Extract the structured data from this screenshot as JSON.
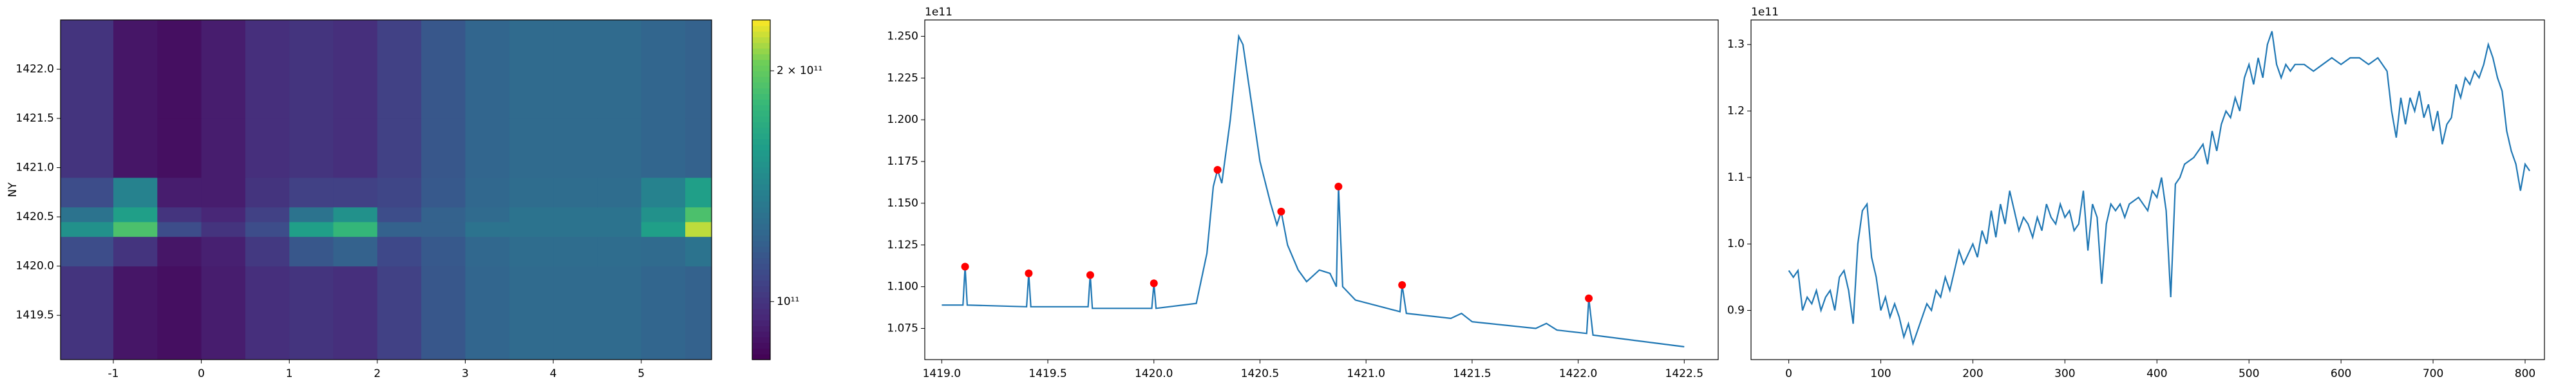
{
  "chart_data": [
    {
      "type": "heatmap",
      "ylabel": "NY",
      "x_edges": [
        -1.6,
        -1.0,
        -0.5,
        0,
        0.5,
        1.0,
        1.5,
        2.0,
        2.5,
        3.0,
        3.5,
        4.0,
        4.5,
        5.0,
        5.5,
        5.8
      ],
      "y_edges": [
        1419.05,
        1420.0,
        1420.3,
        1420.45,
        1420.6,
        1420.9,
        1421.5,
        1422.5
      ],
      "z": [
        [
          100000000000.0,
          90000000000.0,
          88000000000.0,
          92000000000.0,
          98000000000.0,
          100000000000.0,
          98000000000.0,
          105000000000.0,
          115000000000.0,
          122000000000.0,
          125000000000.0,
          125000000000.0,
          125000000000.0,
          122000000000.0,
          120000000000.0
        ],
        [
          110000000000.0,
          100000000000.0,
          90000000000.0,
          93000000000.0,
          102000000000.0,
          115000000000.0,
          120000000000.0,
          108000000000.0,
          116000000000.0,
          123000000000.0,
          126000000000.0,
          126000000000.0,
          126000000000.0,
          125000000000.0,
          130000000000.0
        ],
        [
          150000000000.0,
          190000000000.0,
          110000000000.0,
          100000000000.0,
          110000000000.0,
          160000000000.0,
          180000000000.0,
          120000000000.0,
          120000000000.0,
          130000000000.0,
          130000000000.0,
          130000000000.0,
          130000000000.0,
          160000000000.0,
          220000000000.0
        ],
        [
          130000000000.0,
          160000000000.0,
          100000000000.0,
          95000000000.0,
          105000000000.0,
          130000000000.0,
          150000000000.0,
          110000000000.0,
          120000000000.0,
          125000000000.0,
          130000000000.0,
          130000000000.0,
          130000000000.0,
          150000000000.0,
          190000000000.0
        ],
        [
          110000000000.0,
          140000000000.0,
          92000000000.0,
          92000000000.0,
          100000000000.0,
          105000000000.0,
          105000000000.0,
          107000000000.0,
          116000000000.0,
          123000000000.0,
          126000000000.0,
          126000000000.0,
          126000000000.0,
          140000000000.0,
          160000000000.0
        ],
        [
          100000000000.0,
          90000000000.0,
          88000000000.0,
          92000000000.0,
          98000000000.0,
          100000000000.0,
          98000000000.0,
          105000000000.0,
          115000000000.0,
          122000000000.0,
          125000000000.0,
          125000000000.0,
          125000000000.0,
          122000000000.0,
          120000000000.0
        ],
        [
          100000000000.0,
          90000000000.0,
          88000000000.0,
          92000000000.0,
          98000000000.0,
          100000000000.0,
          98000000000.0,
          105000000000.0,
          115000000000.0,
          122000000000.0,
          125000000000.0,
          125000000000.0,
          125000000000.0,
          122000000000.0,
          120000000000.0
        ]
      ],
      "xlim": [
        -1.6,
        5.8
      ],
      "ylim": [
        1419.05,
        1422.5
      ],
      "xticks": [
        -1,
        0,
        1,
        2,
        3,
        4,
        5
      ],
      "yticks": [
        1419.5,
        {
          "value": 1420,
          "label": "1420.0"
        },
        1420.5,
        {
          "value": 1421,
          "label": "1421.0"
        },
        1421.5,
        {
          "value": 1422,
          "label": "1422.0"
        }
      ],
      "colormap": "viridis",
      "colorbar_log": true,
      "colorbar_lim": [
        84000000000.0,
        233000000000.0
      ],
      "colorbar_ticks": [
        {
          "value": 100000000000.0,
          "label": "10¹¹"
        },
        {
          "value": 200000000000.0,
          "label": "2 × 10¹¹"
        }
      ]
    },
    {
      "type": "line",
      "offset_label": "1e11",
      "color": "#1f77b4",
      "x": [
        1419.0,
        1419.1,
        1419.11,
        1419.12,
        1419.4,
        1419.41,
        1419.42,
        1419.69,
        1419.7,
        1419.71,
        1419.99,
        1420.0,
        1420.01,
        1420.2,
        1420.25,
        1420.28,
        1420.3,
        1420.32,
        1420.36,
        1420.4,
        1420.42,
        1420.46,
        1420.5,
        1420.55,
        1420.58,
        1420.6,
        1420.63,
        1420.68,
        1420.72,
        1420.78,
        1420.83,
        1420.86,
        1420.87,
        1420.89,
        1420.95,
        1421.1,
        1421.16,
        1421.17,
        1421.19,
        1421.4,
        1421.45,
        1421.5,
        1421.8,
        1421.85,
        1421.9,
        1422.04,
        1422.05,
        1422.07,
        1422.5
      ],
      "values": [
        1.089,
        1.089,
        1.112,
        1.089,
        1.088,
        1.108,
        1.088,
        1.088,
        1.107,
        1.087,
        1.087,
        1.102,
        1.087,
        1.09,
        1.12,
        1.16,
        1.17,
        1.162,
        1.2,
        1.25,
        1.245,
        1.21,
        1.175,
        1.15,
        1.137,
        1.145,
        1.125,
        1.11,
        1.103,
        1.11,
        1.108,
        1.1,
        1.16,
        1.1,
        1.092,
        1.087,
        1.085,
        1.101,
        1.084,
        1.081,
        1.084,
        1.079,
        1.075,
        1.078,
        1.074,
        1.072,
        1.093,
        1.071,
        1.064
      ],
      "peaks": {
        "color": "#ff0000",
        "x": [
          1419.11,
          1419.41,
          1419.7,
          1420.0,
          1420.3,
          1420.6,
          1420.87,
          1421.17,
          1422.05
        ],
        "values": [
          1.112,
          1.108,
          1.107,
          1.102,
          1.17,
          1.145,
          1.16,
          1.101,
          1.093
        ]
      },
      "xlim": [
        1418.92,
        1422.66
      ],
      "ylim": [
        1.0563,
        1.2598
      ],
      "xticks": [
        {
          "value": 1419,
          "label": "1419.0"
        },
        1419.5,
        {
          "value": 1420,
          "label": "1420.0"
        },
        1420.5,
        {
          "value": 1421,
          "label": "1421.0"
        },
        1421.5,
        {
          "value": 1422,
          "label": "1422.0"
        },
        1422.5
      ],
      "yticks": [
        1.075,
        {
          "value": 1.1,
          "label": "1.100"
        },
        1.125,
        {
          "value": 1.15,
          "label": "1.150"
        },
        1.175,
        {
          "value": 1.2,
          "label": "1.200"
        },
        1.225,
        {
          "value": 1.25,
          "label": "1.250"
        }
      ]
    },
    {
      "type": "line",
      "offset_label": "1e11",
      "color": "#1f77b4",
      "x": [
        0,
        5,
        10,
        15,
        20,
        25,
        30,
        35,
        40,
        45,
        50,
        55,
        60,
        65,
        70,
        75,
        80,
        85,
        90,
        95,
        100,
        105,
        110,
        115,
        120,
        125,
        130,
        135,
        140,
        145,
        150,
        155,
        160,
        165,
        170,
        175,
        180,
        185,
        190,
        200,
        205,
        210,
        215,
        220,
        225,
        230,
        235,
        240,
        245,
        250,
        255,
        260,
        265,
        270,
        275,
        280,
        285,
        290,
        295,
        300,
        305,
        310,
        315,
        320,
        325,
        330,
        335,
        340,
        345,
        350,
        355,
        360,
        365,
        370,
        380,
        390,
        395,
        400,
        405,
        410,
        415,
        420,
        425,
        430,
        440,
        450,
        455,
        460,
        465,
        470,
        475,
        480,
        485,
        490,
        495,
        500,
        505,
        510,
        515,
        520,
        525,
        530,
        535,
        540,
        545,
        550,
        560,
        570,
        580,
        590,
        600,
        610,
        620,
        630,
        640,
        650,
        655,
        660,
        665,
        670,
        675,
        680,
        685,
        690,
        695,
        700,
        705,
        710,
        715,
        720,
        725,
        730,
        735,
        740,
        745,
        750,
        755,
        760,
        765,
        770,
        775,
        780,
        785,
        790,
        795,
        800,
        805
      ],
      "values": [
        0.96,
        0.95,
        0.96,
        0.9,
        0.92,
        0.91,
        0.93,
        0.9,
        0.92,
        0.93,
        0.9,
        0.95,
        0.96,
        0.93,
        0.88,
        1.0,
        1.05,
        1.06,
        0.98,
        0.95,
        0.9,
        0.92,
        0.89,
        0.91,
        0.89,
        0.86,
        0.88,
        0.85,
        0.87,
        0.89,
        0.91,
        0.9,
        0.93,
        0.92,
        0.95,
        0.93,
        0.96,
        0.99,
        0.97,
        1.0,
        0.98,
        1.02,
        1.0,
        1.05,
        1.01,
        1.06,
        1.03,
        1.08,
        1.05,
        1.02,
        1.04,
        1.03,
        1.01,
        1.04,
        1.02,
        1.06,
        1.04,
        1.03,
        1.06,
        1.04,
        1.05,
        1.02,
        1.03,
        1.08,
        0.99,
        1.06,
        1.04,
        0.94,
        1.03,
        1.06,
        1.05,
        1.06,
        1.04,
        1.06,
        1.07,
        1.05,
        1.08,
        1.07,
        1.1,
        1.05,
        0.92,
        1.09,
        1.1,
        1.12,
        1.13,
        1.15,
        1.12,
        1.17,
        1.14,
        1.18,
        1.2,
        1.19,
        1.22,
        1.2,
        1.25,
        1.27,
        1.24,
        1.28,
        1.25,
        1.3,
        1.32,
        1.27,
        1.25,
        1.27,
        1.26,
        1.27,
        1.27,
        1.26,
        1.27,
        1.28,
        1.27,
        1.28,
        1.28,
        1.27,
        1.28,
        1.26,
        1.2,
        1.16,
        1.22,
        1.18,
        1.22,
        1.2,
        1.23,
        1.19,
        1.21,
        1.17,
        1.2,
        1.15,
        1.18,
        1.19,
        1.24,
        1.22,
        1.25,
        1.24,
        1.26,
        1.25,
        1.27,
        1.3,
        1.28,
        1.25,
        1.23,
        1.17,
        1.14,
        1.12,
        1.08,
        1.12,
        1.11
      ],
      "xlim": [
        -41,
        821
      ],
      "ylim": [
        0.826,
        1.337
      ],
      "xticks": [
        0,
        100,
        200,
        300,
        400,
        500,
        600,
        700,
        800
      ],
      "yticks": [
        0.9,
        {
          "value": 1.0,
          "label": "1.0"
        },
        1.1,
        1.2,
        1.3
      ]
    }
  ]
}
